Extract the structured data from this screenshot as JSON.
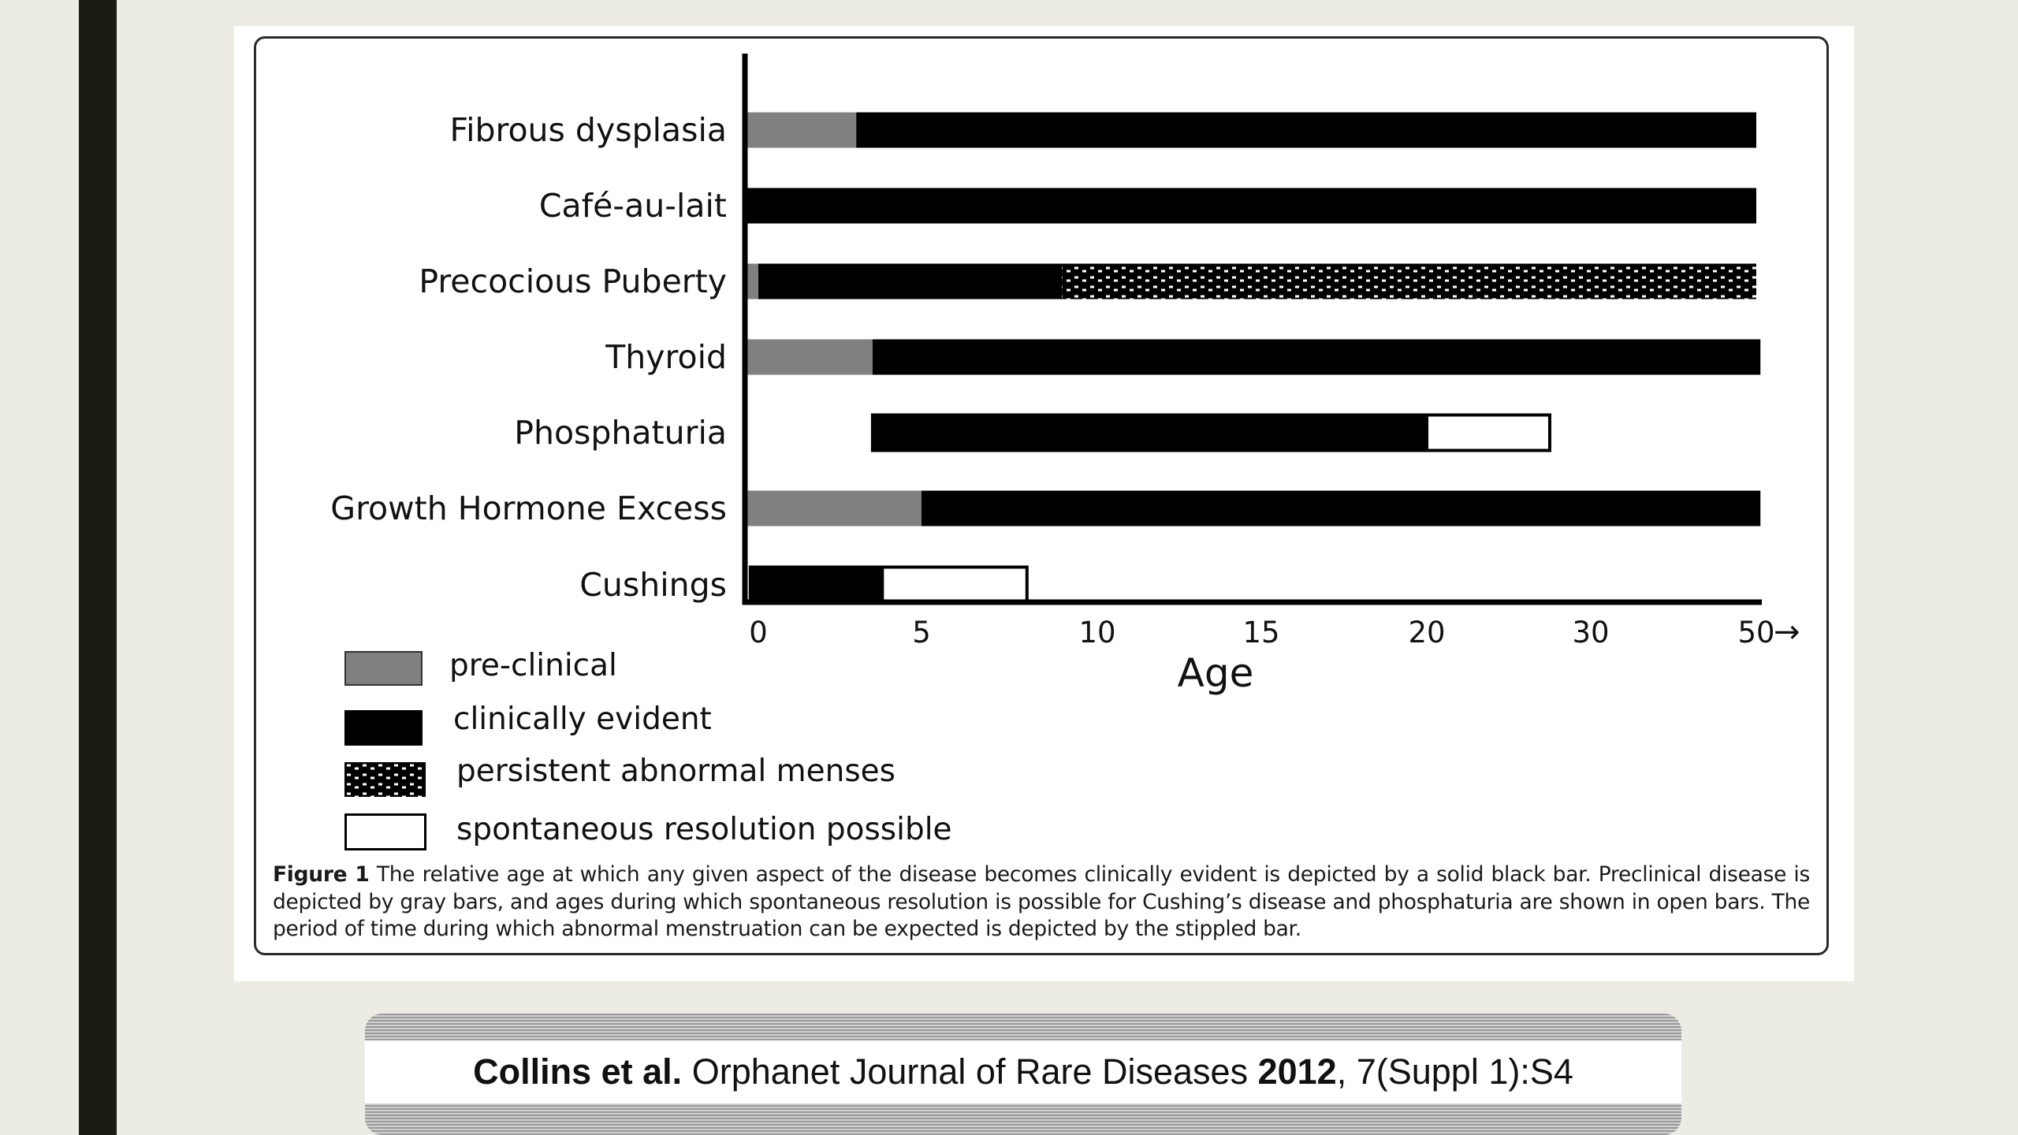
{
  "chart_data": {
    "type": "bar",
    "orientation": "horizontal",
    "title": "",
    "xlabel": "Age",
    "x_ticks": [
      "0",
      "5",
      "10",
      "15",
      "20",
      "30",
      "50"
    ],
    "x_axis_arrow": "→",
    "scale": "non-linear (segments 0-5, 5-10, 10-15, 15-20, 20-30, 30-50)",
    "categories": [
      "Fibrous dysplasia",
      "Café-au-lait",
      "Precocious Puberty",
      "Thyroid",
      "Phosphaturia",
      "Growth Hormone Excess",
      "Cushings"
    ],
    "bars": [
      {
        "category": "Fibrous dysplasia",
        "segments": [
          {
            "phase": "pre-clinical",
            "start": 0,
            "end": 3
          },
          {
            "phase": "clinically evident",
            "start": 3,
            "end": 50
          }
        ]
      },
      {
        "category": "Café-au-lait",
        "segments": [
          {
            "phase": "clinically evident",
            "start": 0,
            "end": 50
          }
        ]
      },
      {
        "category": "Precocious Puberty",
        "segments": [
          {
            "phase": "pre-clinical",
            "start": 0,
            "end": 0.5
          },
          {
            "phase": "clinically evident",
            "start": 0.5,
            "end": 9
          },
          {
            "phase": "persistent abnormal menses",
            "start": 9,
            "end": 50
          }
        ]
      },
      {
        "category": "Thyroid",
        "segments": [
          {
            "phase": "pre-clinical",
            "start": 0,
            "end": 3.5
          },
          {
            "phase": "clinically evident",
            "start": 3.5,
            "end": 50.5
          }
        ]
      },
      {
        "category": "Phosphaturia",
        "segments": [
          {
            "phase": "clinically evident",
            "start": 3.5,
            "end": 20
          },
          {
            "phase": "spontaneous resolution possible",
            "start": 20,
            "end": 27.5
          }
        ]
      },
      {
        "category": "Growth Hormone Excess",
        "segments": [
          {
            "phase": "pre-clinical",
            "start": 0,
            "end": 5
          },
          {
            "phase": "clinically evident",
            "start": 5,
            "end": 50.5
          }
        ]
      },
      {
        "category": "Cushings",
        "segments": [
          {
            "phase": "clinically evident",
            "start": 0.2,
            "end": 3.8
          },
          {
            "phase": "spontaneous resolution possible",
            "start": 3.8,
            "end": 8
          }
        ]
      }
    ],
    "legend": [
      {
        "key": "pre-clinical",
        "label": "pre-clinical",
        "color": "#808080"
      },
      {
        "key": "clinically evident",
        "label": "clinically evident",
        "color": "#000000"
      },
      {
        "key": "persistent abnormal menses",
        "label": "persistent abnormal menses",
        "color": "stippled"
      },
      {
        "key": "spontaneous resolution possible",
        "label": "spontaneous resolution possible",
        "color": "#ffffff"
      }
    ],
    "legend_placement": "bottom-left",
    "grid": false
  },
  "caption": {
    "label": "Figure 1",
    "text": "The relative age at which any given aspect of the disease becomes clinically evident is depicted by a solid black bar. Preclinical disease is depicted by gray bars, and ages during which spontaneous resolution is possible for Cushing’s disease and phosphaturia are shown in open bars. The period of time during which abnormal menstruation can be expected is depicted by the stippled bar."
  },
  "citation": {
    "authors": "Collins et al.",
    "journal": "Orphanet Journal of Rare Diseases",
    "year": "2012",
    "ref": ", 7(Suppl 1):S4"
  },
  "colors": {
    "background": "#ecebe4",
    "accent_bar": "#1c1c12",
    "preclinical": "#808080",
    "clinical": "#000000"
  }
}
